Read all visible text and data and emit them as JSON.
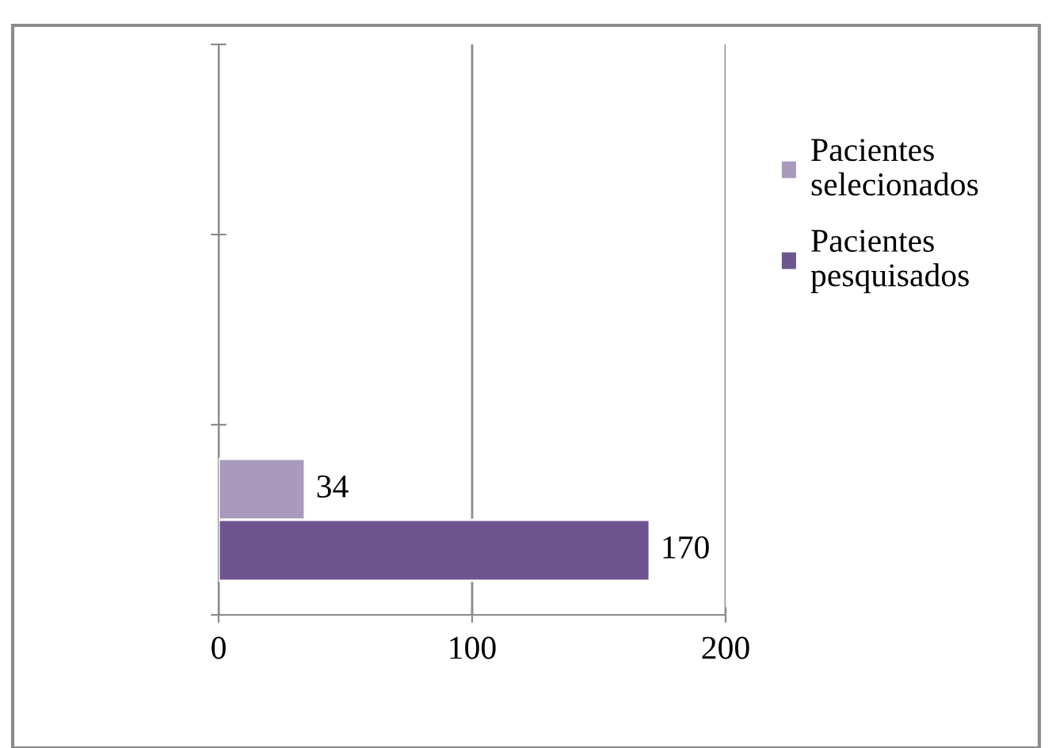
{
  "chart_data": {
    "type": "bar",
    "orientation": "horizontal",
    "categories": [
      null,
      null,
      null
    ],
    "series": [
      {
        "name": "Pacientes selecionados",
        "color": "#a899bd",
        "values": [
          null,
          null,
          34
        ]
      },
      {
        "name": "Pacientes pesquisados",
        "color": "#6f5590",
        "values": [
          null,
          null,
          170
        ]
      }
    ],
    "xlim": [
      0,
      200
    ],
    "xticks": [
      0,
      100,
      200
    ],
    "grid": "x",
    "legend": "right",
    "data_labels": true,
    "tick_labels": "x"
  }
}
